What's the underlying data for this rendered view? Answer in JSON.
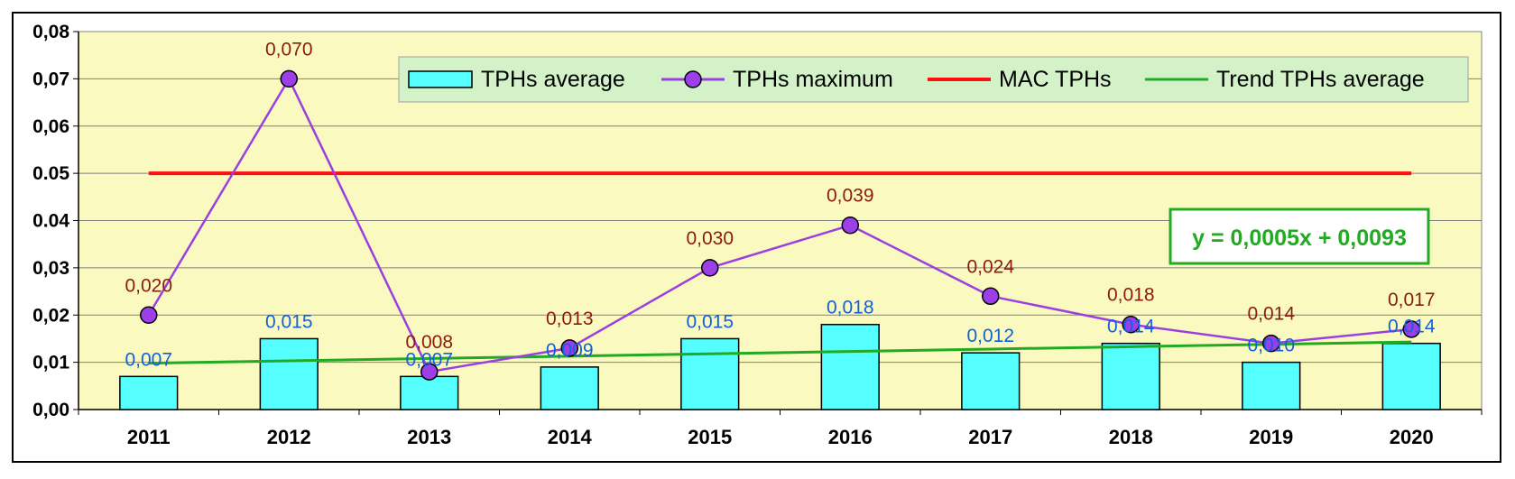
{
  "chart_data": {
    "type": "bar",
    "categories": [
      "2011",
      "2012",
      "2013",
      "2014",
      "2015",
      "2016",
      "2017",
      "2018",
      "2019",
      "2020"
    ],
    "ylim": [
      0,
      0.08
    ],
    "ytick_values": [
      0,
      0.01,
      0.02,
      0.03,
      0.04,
      0.05,
      0.06,
      0.07,
      0.08
    ],
    "ytick_labels": [
      "0,00",
      "0,01",
      "0,02",
      "0,03",
      "0.04",
      "0.05",
      "0,06",
      "0,07",
      "0,08"
    ],
    "grid": true,
    "legend_position": "top-right",
    "series": [
      {
        "name": "TPHs average",
        "kind": "bar",
        "values": [
          0.007,
          0.015,
          0.007,
          0.009,
          0.015,
          0.018,
          0.012,
          0.014,
          0.01,
          0.014
        ],
        "labels": [
          "0,007",
          "0,015",
          "0,007",
          "0,009",
          "0,015",
          "0,018",
          "0,012",
          "0,014",
          "0,010",
          "0,014"
        ],
        "color": "#55FFFF",
        "label_color": "#1060E0"
      },
      {
        "name": "TPHs maximum",
        "kind": "line-marker",
        "values": [
          0.02,
          0.07,
          0.008,
          0.013,
          0.03,
          0.039,
          0.024,
          0.018,
          0.014,
          0.017
        ],
        "labels": [
          "0,020",
          "0,070",
          "0,008",
          "0,013",
          "0,030",
          "0,039",
          "0,024",
          "0,018",
          "0,014",
          "0,017"
        ],
        "color": "#9B3FE0",
        "marker_color": "#9C3FE8",
        "label_color": "#8B1A10"
      },
      {
        "name": "MAC TPHs",
        "kind": "line",
        "values": [
          0.05,
          0.05,
          0.05,
          0.05,
          0.05,
          0.05,
          0.05,
          0.05,
          0.05,
          0.05
        ],
        "color": "#FF1010"
      },
      {
        "name": "Trend TPHs average",
        "kind": "trend",
        "values": [
          0.0098,
          0.0103,
          0.0108,
          0.0113,
          0.0118,
          0.0123,
          0.0128,
          0.0133,
          0.0138,
          0.0143
        ],
        "color": "#22AA22"
      }
    ],
    "annotation": {
      "text": "y = 0,0005x + 0,0093",
      "color": "#22AA22"
    },
    "colors": {
      "plot_background": "#FAFAC0",
      "legend_background": "#D4F2C8",
      "grid": "#808080",
      "axis": "#000000"
    }
  }
}
